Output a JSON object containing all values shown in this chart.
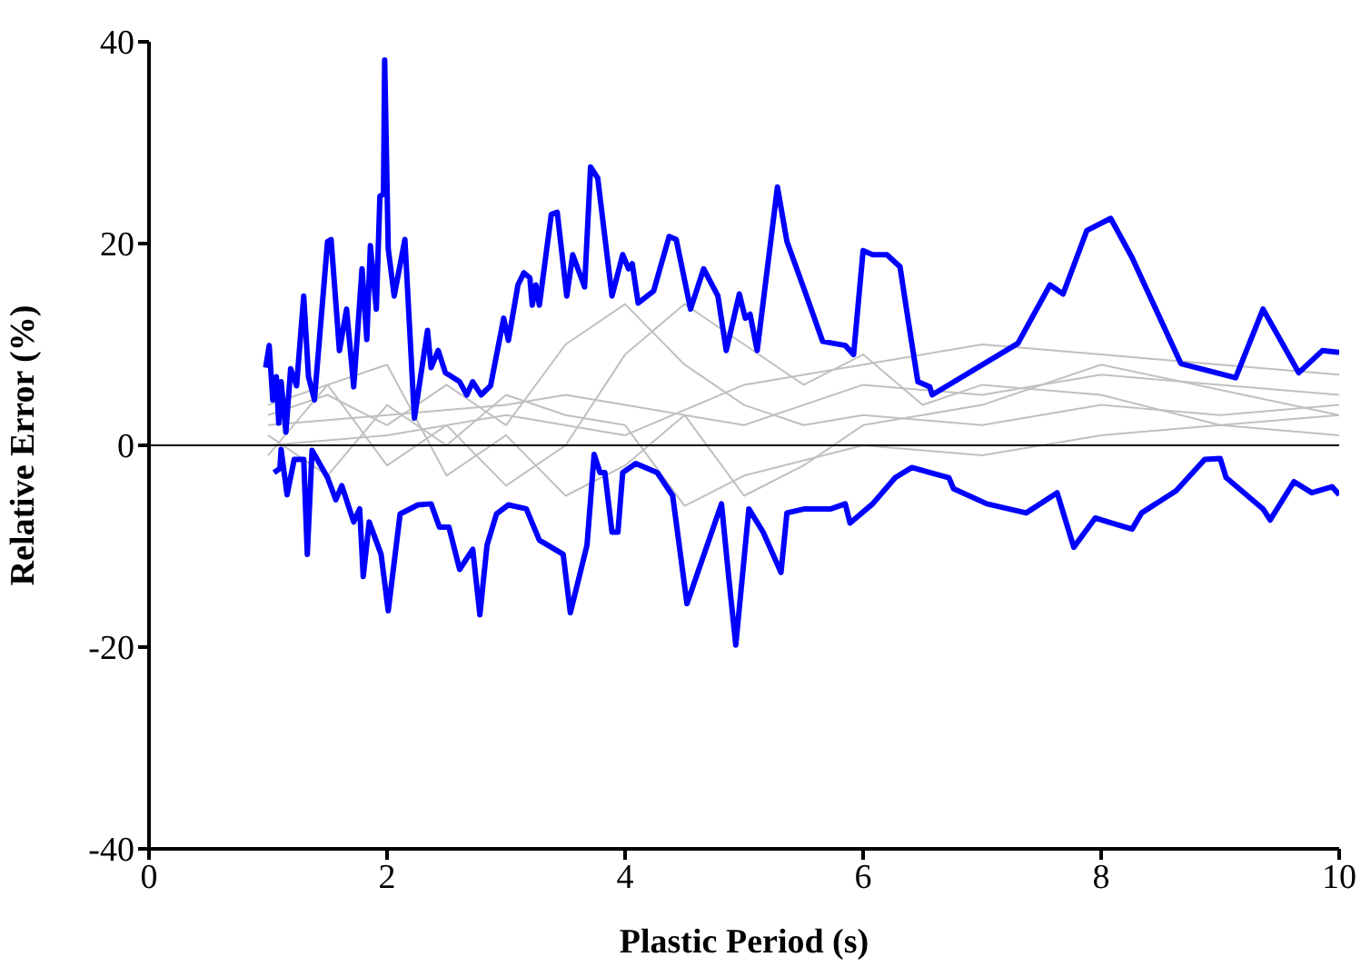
{
  "chart_data": {
    "type": "line",
    "xlabel": "Plastic Period (s)",
    "ylabel": "Relative Error (%)",
    "xlim": [
      0,
      10
    ],
    "xticks": [
      0,
      2,
      4,
      6,
      8,
      10
    ],
    "ylim": [
      -40,
      40
    ],
    "yticks": [
      -40,
      -20,
      0,
      20,
      40
    ],
    "line_style": "solid",
    "ref_lines": [
      {
        "axis": "y",
        "value": 0,
        "color": "#000000"
      }
    ],
    "series": [
      {
        "color": "#c0c0c0",
        "x": [
          1,
          1.5,
          2,
          2.5,
          3,
          3.5,
          4,
          4.5,
          5,
          5.5,
          6,
          7,
          8,
          9,
          10
        ],
        "values": [
          3,
          5,
          2,
          6,
          2,
          10,
          14,
          8,
          4,
          2,
          3,
          2,
          4,
          3,
          4
        ]
      },
      {
        "color": "#c0c0c0",
        "x": [
          1,
          1.5,
          2,
          2.5,
          3,
          3.5,
          4,
          4.5,
          5,
          6,
          7,
          8,
          9,
          10
        ],
        "values": [
          1,
          -3,
          4,
          0,
          5,
          3,
          2,
          -6,
          -3,
          0,
          -1,
          1,
          2,
          1
        ]
      },
      {
        "color": "#c0c0c0",
        "x": [
          1,
          2,
          3,
          3.5,
          4,
          5,
          6,
          7,
          8,
          9,
          10
        ],
        "values": [
          2,
          3,
          4,
          5,
          4,
          2,
          6,
          5,
          7,
          6,
          5
        ]
      },
      {
        "color": "#c0c0c0",
        "x": [
          1,
          1.5,
          2,
          2.5,
          3,
          3.5,
          4,
          4.5,
          5,
          5.5,
          6,
          6.5,
          7,
          8,
          9,
          10
        ],
        "values": [
          -1,
          6,
          -2,
          2,
          -4,
          0,
          9,
          14,
          10,
          6,
          9,
          4,
          6,
          5,
          2,
          3
        ]
      },
      {
        "color": "#c0c0c0",
        "x": [
          1,
          2,
          2.5,
          3,
          3.5,
          4,
          4.5,
          5,
          5.5,
          6,
          7,
          8,
          9,
          10
        ],
        "values": [
          4,
          8,
          -3,
          1,
          -5,
          -2,
          3,
          -5,
          -2,
          2,
          4,
          8,
          5.5,
          3
        ]
      },
      {
        "color": "#c0c0c0",
        "x": [
          1,
          2,
          3,
          4,
          5,
          6,
          7,
          8,
          9,
          10
        ],
        "values": [
          0,
          1,
          3,
          1,
          6,
          8,
          10,
          9,
          8,
          7
        ]
      },
      {
        "color": "#0000ff",
        "x": [
          0.98,
          1.01,
          1.04,
          1.07,
          1.09,
          1.11,
          1.15,
          1.19,
          1.24,
          1.3,
          1.34,
          1.39,
          1.5,
          1.53,
          1.6,
          1.66,
          1.72,
          1.79,
          1.83,
          1.86,
          1.91,
          1.94,
          1.97,
          1.98,
          2.01,
          2.06,
          2.15,
          2.23,
          2.34,
          2.37,
          2.43,
          2.49,
          2.61,
          2.67,
          2.72,
          2.79,
          2.87,
          2.98,
          3.02,
          3.1,
          3.15,
          3.2,
          3.22,
          3.25,
          3.28,
          3.38,
          3.43,
          3.51,
          3.56,
          3.66,
          3.71,
          3.77,
          3.89,
          3.98,
          4.03,
          4.06,
          4.11,
          4.24,
          4.37,
          4.43,
          4.55,
          4.66,
          4.78,
          4.85,
          4.96,
          5.01,
          5.05,
          5.11,
          5.28,
          5.36,
          5.51,
          5.66,
          5.85,
          5.92,
          6,
          6.08,
          6.2,
          6.31,
          6.38,
          6.46,
          6.56,
          6.58,
          7.3,
          7.57,
          7.68,
          7.88,
          8.08,
          8.26,
          8.67,
          9.13,
          9.36,
          9.66,
          9.86,
          10
        ],
        "values": [
          7.7,
          9.9,
          4.5,
          6.8,
          2.2,
          6.3,
          1.3,
          7.6,
          5.9,
          14.8,
          6.8,
          4.5,
          20.2,
          20.4,
          9.4,
          13.5,
          5.8,
          17.5,
          10.5,
          19.8,
          13.5,
          24.7,
          24.9,
          38.2,
          19.5,
          14.8,
          20.4,
          2.7,
          11.4,
          7.7,
          9.4,
          7.2,
          6.3,
          5,
          6.3,
          5,
          5.9,
          12.6,
          10.4,
          15.9,
          17.1,
          16.6,
          13.9,
          15.9,
          13.9,
          22.9,
          23.1,
          14.8,
          18.9,
          15.7,
          27.6,
          26.5,
          14.8,
          18.9,
          17.5,
          18,
          14.1,
          15.3,
          20.7,
          20.4,
          13.5,
          17.5,
          14.8,
          9.4,
          15,
          12.6,
          13,
          9.4,
          25.6,
          20.2,
          15.3,
          10.3,
          9.9,
          9,
          19.3,
          18.9,
          18.9,
          17.7,
          12.3,
          6.3,
          5.8,
          5,
          10.1,
          15.9,
          15,
          21.3,
          22.5,
          18.6,
          8.1,
          6.7,
          13.5,
          7.2,
          9.4,
          9.2
        ]
      },
      {
        "color": "#0000ff",
        "x": [
          1.05,
          1.1,
          1.11,
          1.16,
          1.22,
          1.3,
          1.33,
          1.37,
          1.5,
          1.57,
          1.62,
          1.72,
          1.77,
          1.8,
          1.85,
          1.95,
          2.01,
          2.11,
          2.26,
          2.37,
          2.44,
          2.52,
          2.61,
          2.72,
          2.78,
          2.84,
          2.92,
          3.02,
          3.17,
          3.28,
          3.48,
          3.54,
          3.63,
          3.68,
          3.74,
          3.79,
          3.83,
          3.89,
          3.94,
          3.98,
          4.09,
          4.27,
          4.4,
          4.52,
          4.81,
          4.87,
          4.93,
          5.04,
          5.16,
          5.31,
          5.36,
          5.51,
          5.73,
          5.85,
          5.89,
          6.08,
          6.27,
          6.41,
          6.72,
          6.76,
          7.04,
          7.37,
          7.63,
          7.77,
          7.95,
          8.06,
          8.26,
          8.34,
          8.63,
          8.87,
          9,
          9.05,
          9.36,
          9.42,
          9.62,
          9.77,
          9.94,
          10
        ],
        "values": [
          -2.7,
          -2.3,
          -0.4,
          -4.9,
          -1.4,
          -1.4,
          -10.8,
          -0.5,
          -3.2,
          -5.4,
          -4,
          -7.6,
          -6.3,
          -13,
          -7.6,
          -10.8,
          -16.4,
          -6.8,
          -5.9,
          -5.8,
          -8.1,
          -8.1,
          -12.3,
          -10.3,
          -16.8,
          -9.9,
          -6.8,
          -5.9,
          -6.3,
          -9.4,
          -10.8,
          -16.6,
          -12.3,
          -9.9,
          -0.9,
          -2.7,
          -2.7,
          -8.6,
          -8.6,
          -2.7,
          -1.8,
          -2.7,
          -5,
          -15.7,
          -5.8,
          -13,
          -19.8,
          -6.3,
          -8.6,
          -12.6,
          -6.7,
          -6.3,
          -6.3,
          -5.8,
          -7.7,
          -5.8,
          -3.2,
          -2.2,
          -3.2,
          -4.3,
          -5.8,
          -6.7,
          -4.7,
          -10.1,
          -7.2,
          -7.6,
          -8.3,
          -6.7,
          -4.5,
          -1.4,
          -1.3,
          -3.2,
          -6.3,
          -7.4,
          -3.6,
          -4.7,
          -4.1,
          -4.9
        ]
      }
    ]
  }
}
